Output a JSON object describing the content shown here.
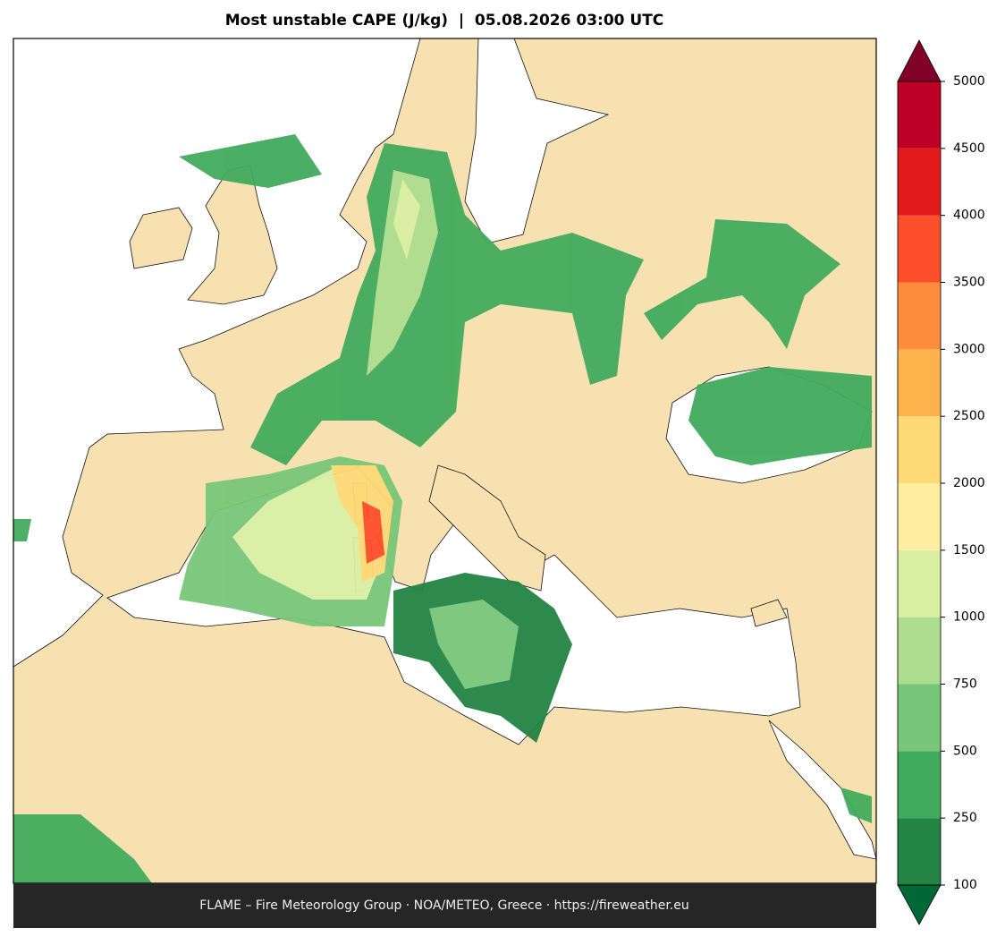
{
  "title": "Most unstable CAPE (J/kg)  |  05.08.2026 03:00 UTC",
  "colorbar": {
    "levels": [
      100,
      250,
      500,
      750,
      1000,
      1500,
      2000,
      2500,
      3000,
      3500,
      4000,
      4500,
      5000
    ],
    "colors": [
      "#238443",
      "#41ab5d",
      "#78c679",
      "#addd8e",
      "#d9f0a3",
      "#ffeda0",
      "#fed976",
      "#feb24c",
      "#fd8d3c",
      "#fc4e2a",
      "#e31a1c",
      "#bd0026"
    ],
    "under_color": "#006837",
    "over_color": "#800026"
  },
  "footer": "FLAME – Fire Meteorology Group · NOA/METEO, Greece · https://fireweather.eu"
}
